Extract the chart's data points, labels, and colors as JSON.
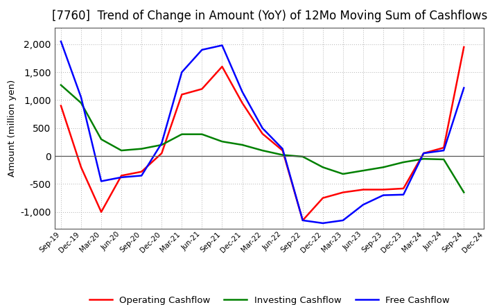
{
  "title": "[7760]  Trend of Change in Amount (YoY) of 12Mo Moving Sum of Cashflows",
  "ylabel": "Amount (million yen)",
  "x_labels": [
    "Sep-19",
    "Dec-19",
    "Mar-20",
    "Jun-20",
    "Sep-20",
    "Dec-20",
    "Mar-21",
    "Jun-21",
    "Sep-21",
    "Dec-21",
    "Mar-22",
    "Jun-22",
    "Sep-22",
    "Dec-22",
    "Mar-23",
    "Jun-23",
    "Sep-23",
    "Dec-23",
    "Mar-24",
    "Jun-24",
    "Sep-24",
    "Dec-24"
  ],
  "operating": [
    900,
    -200,
    -1000,
    -350,
    -280,
    50,
    1100,
    1200,
    1600,
    950,
    400,
    100,
    -1150,
    -750,
    -650,
    -600,
    -600,
    -580,
    50,
    150,
    1950,
    null
  ],
  "investing": [
    1270,
    950,
    300,
    100,
    130,
    200,
    390,
    390,
    260,
    200,
    100,
    20,
    -10,
    -200,
    -320,
    -260,
    -200,
    -110,
    -50,
    -60,
    -650,
    null
  ],
  "free": [
    2050,
    1050,
    -450,
    -380,
    -350,
    230,
    1500,
    1900,
    1980,
    1150,
    500,
    130,
    -1150,
    -1200,
    -1150,
    -870,
    -700,
    -690,
    50,
    100,
    1220,
    null
  ],
  "colors": {
    "operating": "#ff0000",
    "investing": "#008000",
    "free": "#0000ff"
  },
  "ylim": [
    -1300,
    2300
  ],
  "yticks": [
    -1000,
    -500,
    0,
    500,
    1000,
    1500,
    2000
  ],
  "background_color": "#ffffff",
  "grid_color": "#b0b0b0",
  "title_fontsize": 12,
  "legend_labels": [
    "Operating Cashflow",
    "Investing Cashflow",
    "Free Cashflow"
  ]
}
